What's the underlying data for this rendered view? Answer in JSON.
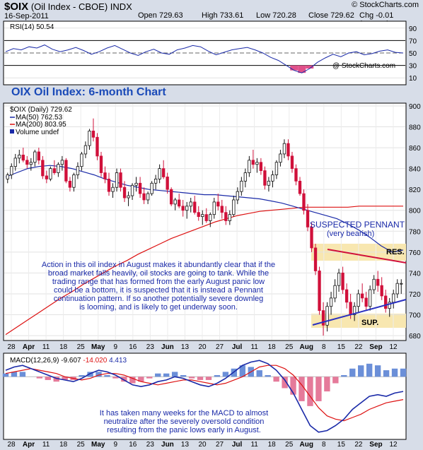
{
  "header": {
    "symbol": "$OIX",
    "name": "(Oil Index - CBOE)",
    "exchange": "INDX",
    "date": "16-Sep-2011",
    "open_label": "Open",
    "open": "729.63",
    "high_label": "High",
    "high": "733.61",
    "low_label": "Low",
    "low": "720.28",
    "close_label": "Close",
    "close": "729.62",
    "chg_label": "Chg",
    "chg": "-0.01 (-0.00%)",
    "logo": "© StockCharts.com"
  },
  "rsi_panel": {
    "legend": "RSI(14) 50.54",
    "watermark": "@ StockCharts.com",
    "ticks": [
      "90",
      "70",
      "50",
      "30",
      "10"
    ]
  },
  "price_panel": {
    "title": "OIX Oil Index: 6-month Chart",
    "legend_main": "$OIX (Daily) 729.62",
    "legend_ma50": "MA(50) 762.53",
    "legend_ma200": "MA(200) 803.95",
    "legend_volume": "Volume undef",
    "ticks": [
      "900",
      "880",
      "860",
      "840",
      "820",
      "800",
      "780",
      "760",
      "740",
      "720",
      "700",
      "680"
    ],
    "annotation_pennant": "SUSPECTED PENNANT",
    "annotation_bearish": "(very bearish)",
    "annotation_res": "RES.",
    "annotation_sup": "SUP.",
    "commentary": [
      "Action in this oil index in August makes it abundantly clear that if the",
      "broad market falls heavily, oil stocks are going to tank. While the",
      "trading range that has formed from the early August panic low",
      "could be a bottom, it is suspected that it is instead a Pennant",
      "continuation pattern. If so another potentially severe downleg",
      "is looming, and is likely to get underway soon."
    ]
  },
  "macd_panel": {
    "legend_label": "MACD(12,26,9)",
    "legend_v1": "-9.607",
    "legend_v2": "-14.020",
    "legend_v3": "4.413",
    "commentary": [
      "It has taken many weeks for the MACD to almost",
      "neutralize after the severely oversold condition",
      "resulting from the panic lows early in August."
    ]
  },
  "x_labels": [
    "28",
    "Apr",
    "11",
    "18",
    "25",
    "May",
    "9",
    "16",
    "23",
    "Jun",
    "13",
    "20",
    "27",
    "Jul",
    "11",
    "18",
    "25",
    "Aug",
    "8",
    "15",
    "22",
    "Sep",
    "12"
  ],
  "colors": {
    "up": "#111111",
    "down": "#d0103a",
    "ma50": "#1a2aa8",
    "ma200": "#dd1111",
    "highlight": "#f8e7b0",
    "bg": "#ffffff",
    "frame": "#d7dde8"
  },
  "chart_data": {
    "type": "candlestick",
    "series": [
      {
        "name": "$OIX (Daily)",
        "type": "candlestick",
        "ohlc": [
          [
            830,
            836,
            826,
            834
          ],
          [
            834,
            845,
            830,
            842
          ],
          [
            842,
            854,
            838,
            850
          ],
          [
            850,
            858,
            845,
            853
          ],
          [
            853,
            860,
            846,
            848
          ],
          [
            848,
            852,
            840,
            844
          ],
          [
            844,
            850,
            838,
            846
          ],
          [
            846,
            858,
            842,
            856
          ],
          [
            856,
            860,
            844,
            848
          ],
          [
            848,
            852,
            830,
            833
          ],
          [
            833,
            838,
            826,
            830
          ],
          [
            830,
            842,
            828,
            840
          ],
          [
            840,
            848,
            834,
            836
          ],
          [
            836,
            846,
            832,
            844
          ],
          [
            844,
            852,
            838,
            848
          ],
          [
            848,
            850,
            826,
            828
          ],
          [
            828,
            832,
            818,
            822
          ],
          [
            822,
            836,
            818,
            834
          ],
          [
            834,
            846,
            830,
            842
          ],
          [
            842,
            856,
            838,
            854
          ],
          [
            854,
            866,
            850,
            862
          ],
          [
            862,
            878,
            858,
            876
          ],
          [
            876,
            888,
            866,
            870
          ],
          [
            870,
            874,
            848,
            852
          ],
          [
            852,
            856,
            832,
            836
          ],
          [
            836,
            842,
            826,
            830
          ],
          [
            830,
            836,
            814,
            818
          ],
          [
            818,
            826,
            812,
            822
          ],
          [
            822,
            840,
            818,
            836
          ],
          [
            836,
            840,
            818,
            822
          ],
          [
            822,
            828,
            808,
            812
          ],
          [
            812,
            818,
            804,
            814
          ],
          [
            814,
            826,
            810,
            824
          ],
          [
            824,
            832,
            818,
            826
          ],
          [
            826,
            832,
            812,
            816
          ],
          [
            816,
            822,
            806,
            810
          ],
          [
            810,
            818,
            806,
            816
          ],
          [
            816,
            828,
            814,
            826
          ],
          [
            826,
            834,
            820,
            830
          ],
          [
            830,
            844,
            826,
            840
          ],
          [
            840,
            848,
            830,
            832
          ],
          [
            832,
            836,
            816,
            820
          ],
          [
            820,
            822,
            804,
            806
          ],
          [
            806,
            812,
            800,
            810
          ],
          [
            810,
            816,
            802,
            804
          ],
          [
            804,
            810,
            794,
            800
          ],
          [
            800,
            808,
            792,
            804
          ],
          [
            804,
            812,
            798,
            808
          ],
          [
            808,
            814,
            796,
            798
          ],
          [
            798,
            804,
            790,
            794
          ],
          [
            794,
            800,
            786,
            796
          ],
          [
            796,
            802,
            788,
            790
          ],
          [
            790,
            798,
            784,
            796
          ],
          [
            796,
            812,
            792,
            808
          ],
          [
            808,
            816,
            800,
            804
          ],
          [
            804,
            810,
            792,
            798
          ],
          [
            798,
            804,
            786,
            790
          ],
          [
            790,
            800,
            786,
            796
          ],
          [
            796,
            814,
            794,
            810
          ],
          [
            810,
            822,
            806,
            818
          ],
          [
            818,
            832,
            814,
            828
          ],
          [
            828,
            840,
            822,
            836
          ],
          [
            836,
            852,
            832,
            848
          ],
          [
            848,
            858,
            840,
            844
          ],
          [
            844,
            850,
            836,
            846
          ],
          [
            846,
            850,
            834,
            838
          ],
          [
            838,
            842,
            820,
            824
          ],
          [
            824,
            832,
            818,
            828
          ],
          [
            828,
            838,
            822,
            834
          ],
          [
            834,
            848,
            830,
            846
          ],
          [
            846,
            858,
            842,
            854
          ],
          [
            854,
            868,
            850,
            864
          ],
          [
            864,
            868,
            848,
            852
          ],
          [
            852,
            856,
            836,
            840
          ],
          [
            840,
            844,
            824,
            828
          ],
          [
            828,
            832,
            814,
            816
          ],
          [
            816,
            820,
            796,
            800
          ],
          [
            800,
            806,
            780,
            784
          ],
          [
            784,
            788,
            760,
            764
          ],
          [
            764,
            768,
            738,
            742
          ],
          [
            742,
            746,
            700,
            704
          ],
          [
            704,
            712,
            680,
            690
          ],
          [
            690,
            712,
            684,
            708
          ],
          [
            708,
            722,
            700,
            716
          ],
          [
            716,
            734,
            712,
            728
          ],
          [
            728,
            744,
            722,
            740
          ],
          [
            740,
            746,
            720,
            724
          ],
          [
            724,
            730,
            706,
            712
          ],
          [
            712,
            720,
            696,
            700
          ],
          [
            700,
            712,
            694,
            708
          ],
          [
            708,
            724,
            702,
            720
          ],
          [
            720,
            730,
            712,
            716
          ],
          [
            716,
            722,
            704,
            708
          ],
          [
            708,
            728,
            704,
            724
          ],
          [
            724,
            738,
            720,
            734
          ],
          [
            734,
            742,
            722,
            728
          ],
          [
            728,
            736,
            714,
            718
          ],
          [
            718,
            724,
            702,
            706
          ],
          [
            706,
            716,
            698,
            712
          ],
          [
            712,
            724,
            706,
            720
          ],
          [
            720,
            734,
            716,
            730
          ],
          [
            730,
            734,
            720,
            730
          ]
        ]
      },
      {
        "name": "MA(50)",
        "type": "line",
        "values": [
          832,
          836,
          840,
          842,
          843,
          842,
          840,
          837,
          834,
          830,
          827,
          824,
          822,
          820,
          819,
          818,
          817,
          816,
          815,
          815,
          814,
          813,
          812,
          811,
          809,
          807,
          804,
          801,
          798,
          795,
          792,
          787,
          781,
          774,
          766,
          760,
          762
        ]
      },
      {
        "name": "MA(200)",
        "type": "line",
        "values": [
          681,
          688,
          695,
          702,
          709,
          716,
          722,
          729,
          735,
          741,
          747,
          752,
          758,
          763,
          768,
          773,
          777,
          781,
          785,
          789,
          792,
          795,
          797,
          799,
          800,
          801,
          802,
          803,
          803,
          803,
          803,
          803,
          804,
          804,
          804,
          804,
          804
        ]
      },
      {
        "name": "RSI(14)",
        "type": "line",
        "values": [
          52,
          57,
          55,
          60,
          58,
          63,
          56,
          52,
          55,
          59,
          54,
          48,
          52,
          58,
          62,
          56,
          50,
          46,
          52,
          56,
          50,
          48,
          55,
          58,
          62,
          60,
          53,
          47,
          51,
          55,
          57,
          59,
          55,
          50,
          43,
          38,
          30,
          22,
          18,
          25,
          35,
          42,
          48,
          44,
          50,
          52,
          47,
          49,
          53,
          55,
          51,
          50
        ]
      },
      {
        "name": "MACD",
        "type": "line",
        "values": [
          4,
          6,
          7,
          5,
          3,
          1,
          -1,
          -2,
          -3,
          -1,
          2,
          4,
          3,
          1,
          -2,
          -5,
          -6,
          -5,
          -3,
          -2,
          0,
          -1,
          -3,
          -5,
          -6,
          -4,
          -1,
          3,
          7,
          9,
          10,
          8,
          4,
          -2,
          -10,
          -20,
          -30,
          -34,
          -33,
          -30,
          -26,
          -20,
          -16,
          -12,
          -11,
          -12,
          -10,
          -9
        ]
      },
      {
        "name": "Signal",
        "type": "line",
        "values": [
          2,
          3,
          4,
          5,
          4,
          3,
          2,
          0,
          -1,
          -2,
          -1,
          1,
          2,
          2,
          1,
          -1,
          -3,
          -4,
          -5,
          -4,
          -3,
          -2,
          -2,
          -3,
          -4,
          -5,
          -4,
          -2,
          0,
          3,
          6,
          7,
          7,
          5,
          1,
          -5,
          -12,
          -19,
          -24,
          -26,
          -27,
          -25,
          -23,
          -20,
          -18,
          -16,
          -15,
          -14
        ]
      }
    ],
    "ylim_price": [
      676,
      902
    ],
    "ylim_rsi": [
      0,
      100
    ],
    "ylim_macd": [
      -38,
      14
    ],
    "grid": true
  }
}
